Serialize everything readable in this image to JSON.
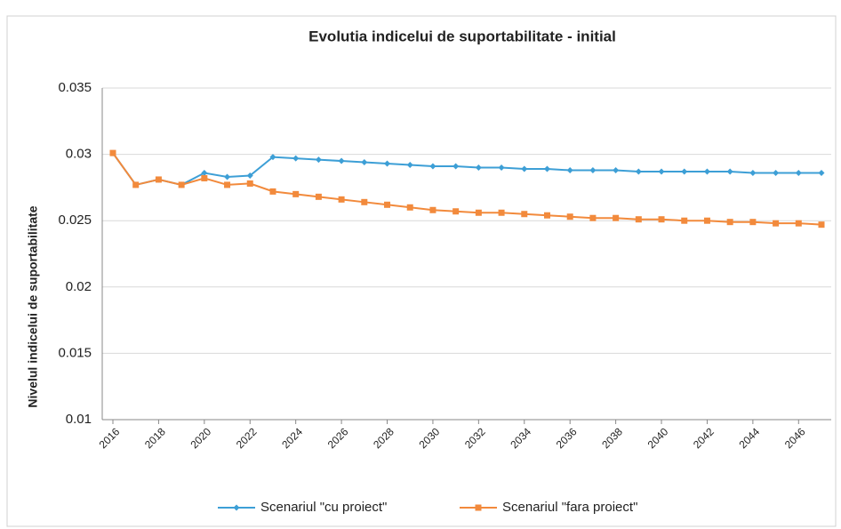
{
  "chart_data": {
    "type": "line",
    "title": "Evolutia indicelui de suportabilitate - initial",
    "y_label": "Nivelul indicelui de suportabilitate",
    "x": [
      2016,
      2017,
      2018,
      2019,
      2020,
      2021,
      2022,
      2023,
      2024,
      2025,
      2026,
      2027,
      2028,
      2029,
      2030,
      2031,
      2032,
      2033,
      2034,
      2035,
      2036,
      2037,
      2038,
      2039,
      2040,
      2041,
      2042,
      2043,
      2044,
      2045,
      2046,
      2047
    ],
    "xlim": [
      2016,
      2047
    ],
    "xticks": [
      2016,
      2018,
      2020,
      2022,
      2024,
      2026,
      2028,
      2030,
      2032,
      2034,
      2036,
      2038,
      2040,
      2042,
      2044,
      2046
    ],
    "ylim": [
      0.01,
      0.035
    ],
    "yticks": [
      0.01,
      0.015,
      0.02,
      0.025,
      0.03,
      0.035
    ],
    "grid": true,
    "legend": "bottom",
    "series": [
      {
        "name": "Scenariul \"cu proiect\"",
        "color": "#3d9fd6",
        "marker": "diamond",
        "values": [
          0.0301,
          0.0277,
          0.0281,
          0.0277,
          0.0286,
          0.0283,
          0.0284,
          0.0298,
          0.0297,
          0.0296,
          0.0295,
          0.0294,
          0.0293,
          0.0292,
          0.0291,
          0.0291,
          0.029,
          0.029,
          0.0289,
          0.0289,
          0.0288,
          0.0288,
          0.0288,
          0.0287,
          0.0287,
          0.0287,
          0.0287,
          0.0287,
          0.0286,
          0.0286,
          0.0286,
          0.0286
        ]
      },
      {
        "name": "Scenariul \"fara proiect\"",
        "color": "#f28a3c",
        "marker": "square",
        "values": [
          0.0301,
          0.0277,
          0.0281,
          0.0277,
          0.0282,
          0.0277,
          0.0278,
          0.0272,
          0.027,
          0.0268,
          0.0266,
          0.0264,
          0.0262,
          0.026,
          0.0258,
          0.0257,
          0.0256,
          0.0256,
          0.0255,
          0.0254,
          0.0253,
          0.0252,
          0.0252,
          0.0251,
          0.0251,
          0.025,
          0.025,
          0.0249,
          0.0249,
          0.0248,
          0.0248,
          0.0247
        ]
      }
    ]
  }
}
